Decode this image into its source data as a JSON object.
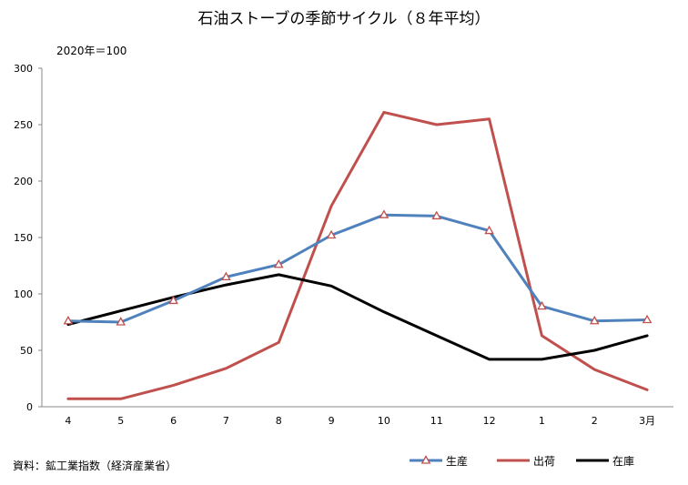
{
  "chart_data": {
    "type": "line",
    "title": "石油ストーブの季節サイクル（８年平均）",
    "unit_note": "2020年＝100",
    "source": "資料：鉱工業指数（経済産業省）",
    "categories": [
      "4",
      "5",
      "6",
      "7",
      "8",
      "9",
      "10",
      "11",
      "12",
      "1",
      "2",
      "3月"
    ],
    "ylim": [
      0,
      300
    ],
    "yticks": [
      0,
      50,
      100,
      150,
      200,
      250,
      300
    ],
    "grid": false,
    "legend_position": "bottom-right",
    "series": [
      {
        "name": "生産",
        "color": "#4F81BD",
        "marker": "triangle",
        "marker_color": "#C0504D",
        "values": [
          76,
          75,
          94,
          115,
          126,
          152,
          170,
          169,
          156,
          89,
          76,
          77
        ]
      },
      {
        "name": "出荷",
        "color": "#C0504D",
        "marker": "none",
        "values": [
          7,
          7,
          19,
          34,
          57,
          178,
          261,
          250,
          255,
          63,
          33,
          15
        ]
      },
      {
        "name": "在庫",
        "color": "#000000",
        "marker": "none",
        "values": [
          73,
          85,
          97,
          108,
          117,
          107,
          84,
          63,
          42,
          42,
          50,
          63
        ]
      }
    ]
  }
}
